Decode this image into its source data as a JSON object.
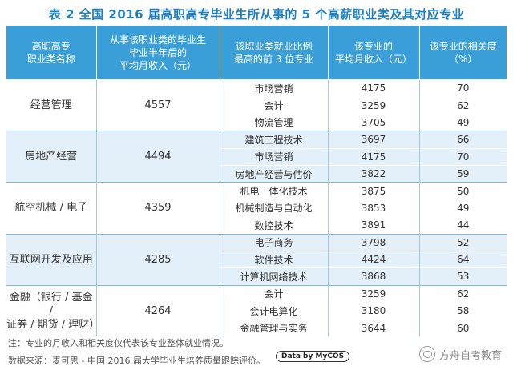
{
  "title": "表 2  全国 2016 届高职高专毕业生所从事的 5 个高薪职业类及其对应专业",
  "headers": [
    "高职高专\n职业类名称",
    "从事该职业类的毕业生\n毕业半年后的\n平均月收入（元）",
    "该职业类就业比例\n最高的前 3 位专业",
    "该专业的\n平均月收入（元）",
    "该专业的相关度\n（%）"
  ],
  "groups": [
    {
      "name": "经营管理",
      "income": "4557",
      "majors": [
        {
          "major": "市场营销",
          "income": "4175",
          "relevance": "70"
        },
        {
          "major": "会计",
          "income": "3259",
          "relevance": "62"
        },
        {
          "major": "物流管理",
          "income": "3705",
          "relevance": "49"
        }
      ]
    },
    {
      "name": "房地产经营",
      "income": "4494",
      "majors": [
        {
          "major": "建筑工程技术",
          "income": "3697",
          "relevance": "66"
        },
        {
          "major": "市场营销",
          "income": "4175",
          "relevance": "70"
        },
        {
          "major": "房地产经营与估价",
          "income": "3822",
          "relevance": "59"
        }
      ]
    },
    {
      "name": "航空机械 / 电子",
      "income": "4359",
      "majors": [
        {
          "major": "机电一体化技术",
          "income": "3875",
          "relevance": "50"
        },
        {
          "major": "机械制造与自动化",
          "income": "3853",
          "relevance": "49"
        },
        {
          "major": "数控技术",
          "income": "3891",
          "relevance": "44"
        }
      ]
    },
    {
      "name": "互联网开发及应用",
      "income": "4285",
      "majors": [
        {
          "major": "电子商务",
          "income": "3798",
          "relevance": "52"
        },
        {
          "major": "软件技术",
          "income": "4424",
          "relevance": "64"
        },
        {
          "major": "计算机网络技术",
          "income": "3868",
          "relevance": "53"
        }
      ]
    },
    {
      "name": "金融（银行 / 基金 /\n证券 / 期货 / 理财）",
      "income": "4264",
      "majors": [
        {
          "major": "会计",
          "income": "3259",
          "relevance": "62"
        },
        {
          "major": "会计电算化",
          "income": "3180",
          "relevance": "58"
        },
        {
          "major": "金融管理与实务",
          "income": "3644",
          "relevance": "60"
        }
      ]
    }
  ],
  "note": "注：专业的月收入和相关度仅代表该专业整体就业情况。",
  "source": "数据来源：麦可思 - 中国 2016 届大学毕业生培养质量跟踪评价。",
  "badge": "Data by MyCOS",
  "watermark": "方舟自考教育",
  "colors": {
    "title": "#1f7fc0",
    "header_bg": "#3a9fd8",
    "band": "#e3f0fa"
  }
}
